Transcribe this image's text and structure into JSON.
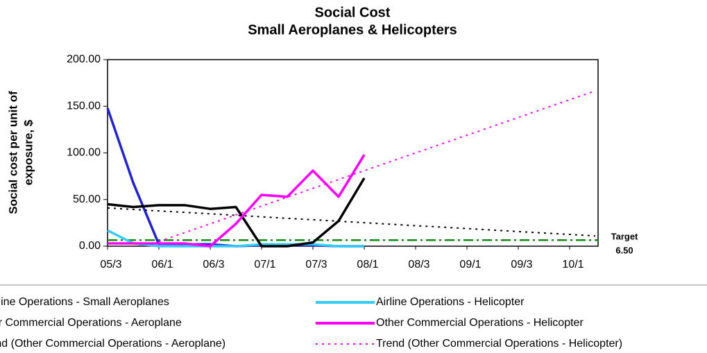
{
  "chart_data": {
    "type": "line",
    "title": [
      "Social Cost",
      "Small Aeroplanes & Helicopters"
    ],
    "y_label": [
      "Social cost per unit of",
      "exposure, $"
    ],
    "categories": [
      "05/3",
      null,
      "06/1",
      null,
      "06/3",
      null,
      "07/1",
      null,
      "07/3",
      null,
      "08/1",
      null,
      "08/3",
      null,
      "09/1",
      null,
      "09/3",
      null,
      "10/1",
      null
    ],
    "ylim": [
      0,
      200
    ],
    "yticks": [
      {
        "value": 0,
        "label": "0.00"
      },
      {
        "value": 50,
        "label": "50.00"
      },
      {
        "value": 100,
        "label": "100.00"
      },
      {
        "value": 150,
        "label": "150.00"
      },
      {
        "value": 200,
        "label": "200.00"
      }
    ],
    "target": {
      "label": "Target",
      "value": 6.5,
      "value_label": "6.50",
      "color": "#138a13"
    },
    "series": [
      {
        "name": "Airline Operations - Small Aeroplanes",
        "color": "#1f1fe0",
        "dash": "solid",
        "values": [
          148,
          68,
          2,
          2,
          2,
          0,
          1,
          1,
          1,
          0,
          0,
          null,
          null,
          null,
          null,
          null,
          null,
          null,
          null,
          null
        ]
      },
      {
        "name": "Airline Operations - Helicopter",
        "color": "#33ccf5",
        "dash": "solid",
        "values": [
          17,
          3,
          0,
          0,
          0,
          0,
          2,
          2,
          2,
          0,
          0,
          null,
          null,
          null,
          null,
          null,
          null,
          null,
          null,
          null
        ]
      },
      {
        "name": "Other Commercial Operations - Aeroplane",
        "color": "#000000",
        "dash": "solid",
        "values": [
          45,
          42,
          44,
          44,
          40,
          42,
          0,
          0,
          4,
          27,
          73,
          null,
          null,
          null,
          null,
          null,
          null,
          null,
          null,
          null
        ]
      },
      {
        "name": "Other Commercial Operations - Helicopter",
        "color": "#ff00ff",
        "dash": "solid",
        "values": [
          3,
          3,
          3,
          3,
          0,
          24,
          55,
          53,
          81,
          53,
          98,
          null,
          null,
          null,
          null,
          null,
          null,
          null,
          null,
          null
        ]
      },
      {
        "name": "Trend (Other Commercial Operations - Aeroplane)",
        "color": "#000000",
        "dash": "dotted",
        "values": [
          41,
          39.4,
          37.8,
          36.3,
          34.7,
          33.1,
          31.5,
          29.9,
          28.4,
          26.8,
          25.2,
          23.6,
          22.0,
          20.5,
          18.9,
          17.3,
          15.7,
          14.1,
          12.6,
          11.0
        ]
      },
      {
        "name": "Trend (Other Commercial Operations - Helicopter)",
        "color": "#ff00ff",
        "dash": "dotted",
        "values": [
          null,
          null,
          5,
          14.5,
          24,
          33.5,
          43,
          52.5,
          62,
          71.5,
          81,
          90.5,
          100,
          109.5,
          119,
          128.5,
          138,
          147.5,
          157,
          166.5
        ]
      }
    ]
  }
}
